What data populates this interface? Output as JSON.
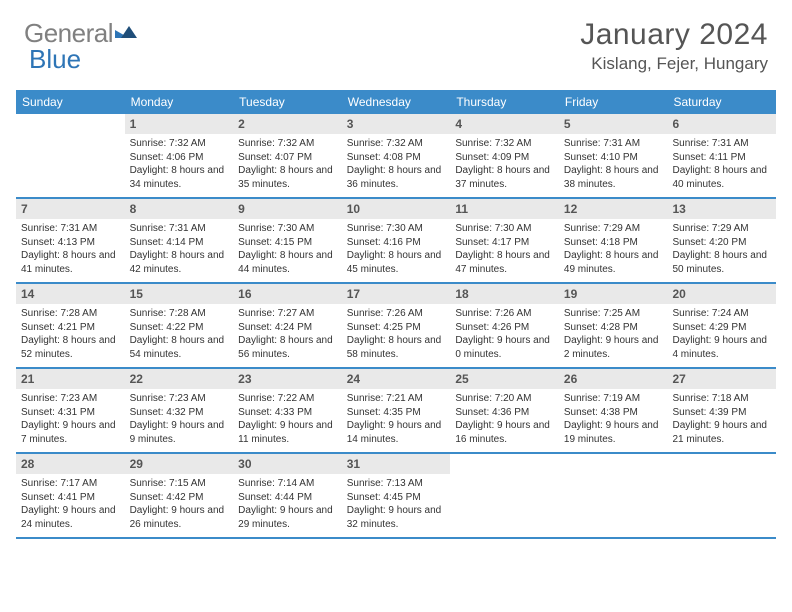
{
  "brand": {
    "part1": "General",
    "part2": "Blue"
  },
  "title": "January 2024",
  "location": "Kislang, Fejer, Hungary",
  "colors": {
    "header_bg": "#3b8bc9",
    "header_text": "#ffffff",
    "daynum_bg": "#e9e9e9",
    "rule": "#3b8bc9",
    "brand_gray": "#808080",
    "brand_blue": "#2e75b6"
  },
  "day_names": [
    "Sunday",
    "Monday",
    "Tuesday",
    "Wednesday",
    "Thursday",
    "Friday",
    "Saturday"
  ],
  "weeks": [
    [
      {
        "n": "",
        "sr": "",
        "ss": "",
        "dl": ""
      },
      {
        "n": "1",
        "sr": "Sunrise: 7:32 AM",
        "ss": "Sunset: 4:06 PM",
        "dl": "Daylight: 8 hours and 34 minutes."
      },
      {
        "n": "2",
        "sr": "Sunrise: 7:32 AM",
        "ss": "Sunset: 4:07 PM",
        "dl": "Daylight: 8 hours and 35 minutes."
      },
      {
        "n": "3",
        "sr": "Sunrise: 7:32 AM",
        "ss": "Sunset: 4:08 PM",
        "dl": "Daylight: 8 hours and 36 minutes."
      },
      {
        "n": "4",
        "sr": "Sunrise: 7:32 AM",
        "ss": "Sunset: 4:09 PM",
        "dl": "Daylight: 8 hours and 37 minutes."
      },
      {
        "n": "5",
        "sr": "Sunrise: 7:31 AM",
        "ss": "Sunset: 4:10 PM",
        "dl": "Daylight: 8 hours and 38 minutes."
      },
      {
        "n": "6",
        "sr": "Sunrise: 7:31 AM",
        "ss": "Sunset: 4:11 PM",
        "dl": "Daylight: 8 hours and 40 minutes."
      }
    ],
    [
      {
        "n": "7",
        "sr": "Sunrise: 7:31 AM",
        "ss": "Sunset: 4:13 PM",
        "dl": "Daylight: 8 hours and 41 minutes."
      },
      {
        "n": "8",
        "sr": "Sunrise: 7:31 AM",
        "ss": "Sunset: 4:14 PM",
        "dl": "Daylight: 8 hours and 42 minutes."
      },
      {
        "n": "9",
        "sr": "Sunrise: 7:30 AM",
        "ss": "Sunset: 4:15 PM",
        "dl": "Daylight: 8 hours and 44 minutes."
      },
      {
        "n": "10",
        "sr": "Sunrise: 7:30 AM",
        "ss": "Sunset: 4:16 PM",
        "dl": "Daylight: 8 hours and 45 minutes."
      },
      {
        "n": "11",
        "sr": "Sunrise: 7:30 AM",
        "ss": "Sunset: 4:17 PM",
        "dl": "Daylight: 8 hours and 47 minutes."
      },
      {
        "n": "12",
        "sr": "Sunrise: 7:29 AM",
        "ss": "Sunset: 4:18 PM",
        "dl": "Daylight: 8 hours and 49 minutes."
      },
      {
        "n": "13",
        "sr": "Sunrise: 7:29 AM",
        "ss": "Sunset: 4:20 PM",
        "dl": "Daylight: 8 hours and 50 minutes."
      }
    ],
    [
      {
        "n": "14",
        "sr": "Sunrise: 7:28 AM",
        "ss": "Sunset: 4:21 PM",
        "dl": "Daylight: 8 hours and 52 minutes."
      },
      {
        "n": "15",
        "sr": "Sunrise: 7:28 AM",
        "ss": "Sunset: 4:22 PM",
        "dl": "Daylight: 8 hours and 54 minutes."
      },
      {
        "n": "16",
        "sr": "Sunrise: 7:27 AM",
        "ss": "Sunset: 4:24 PM",
        "dl": "Daylight: 8 hours and 56 minutes."
      },
      {
        "n": "17",
        "sr": "Sunrise: 7:26 AM",
        "ss": "Sunset: 4:25 PM",
        "dl": "Daylight: 8 hours and 58 minutes."
      },
      {
        "n": "18",
        "sr": "Sunrise: 7:26 AM",
        "ss": "Sunset: 4:26 PM",
        "dl": "Daylight: 9 hours and 0 minutes."
      },
      {
        "n": "19",
        "sr": "Sunrise: 7:25 AM",
        "ss": "Sunset: 4:28 PM",
        "dl": "Daylight: 9 hours and 2 minutes."
      },
      {
        "n": "20",
        "sr": "Sunrise: 7:24 AM",
        "ss": "Sunset: 4:29 PM",
        "dl": "Daylight: 9 hours and 4 minutes."
      }
    ],
    [
      {
        "n": "21",
        "sr": "Sunrise: 7:23 AM",
        "ss": "Sunset: 4:31 PM",
        "dl": "Daylight: 9 hours and 7 minutes."
      },
      {
        "n": "22",
        "sr": "Sunrise: 7:23 AM",
        "ss": "Sunset: 4:32 PM",
        "dl": "Daylight: 9 hours and 9 minutes."
      },
      {
        "n": "23",
        "sr": "Sunrise: 7:22 AM",
        "ss": "Sunset: 4:33 PM",
        "dl": "Daylight: 9 hours and 11 minutes."
      },
      {
        "n": "24",
        "sr": "Sunrise: 7:21 AM",
        "ss": "Sunset: 4:35 PM",
        "dl": "Daylight: 9 hours and 14 minutes."
      },
      {
        "n": "25",
        "sr": "Sunrise: 7:20 AM",
        "ss": "Sunset: 4:36 PM",
        "dl": "Daylight: 9 hours and 16 minutes."
      },
      {
        "n": "26",
        "sr": "Sunrise: 7:19 AM",
        "ss": "Sunset: 4:38 PM",
        "dl": "Daylight: 9 hours and 19 minutes."
      },
      {
        "n": "27",
        "sr": "Sunrise: 7:18 AM",
        "ss": "Sunset: 4:39 PM",
        "dl": "Daylight: 9 hours and 21 minutes."
      }
    ],
    [
      {
        "n": "28",
        "sr": "Sunrise: 7:17 AM",
        "ss": "Sunset: 4:41 PM",
        "dl": "Daylight: 9 hours and 24 minutes."
      },
      {
        "n": "29",
        "sr": "Sunrise: 7:15 AM",
        "ss": "Sunset: 4:42 PM",
        "dl": "Daylight: 9 hours and 26 minutes."
      },
      {
        "n": "30",
        "sr": "Sunrise: 7:14 AM",
        "ss": "Sunset: 4:44 PM",
        "dl": "Daylight: 9 hours and 29 minutes."
      },
      {
        "n": "31",
        "sr": "Sunrise: 7:13 AM",
        "ss": "Sunset: 4:45 PM",
        "dl": "Daylight: 9 hours and 32 minutes."
      },
      {
        "n": "",
        "sr": "",
        "ss": "",
        "dl": ""
      },
      {
        "n": "",
        "sr": "",
        "ss": "",
        "dl": ""
      },
      {
        "n": "",
        "sr": "",
        "ss": "",
        "dl": ""
      }
    ]
  ]
}
